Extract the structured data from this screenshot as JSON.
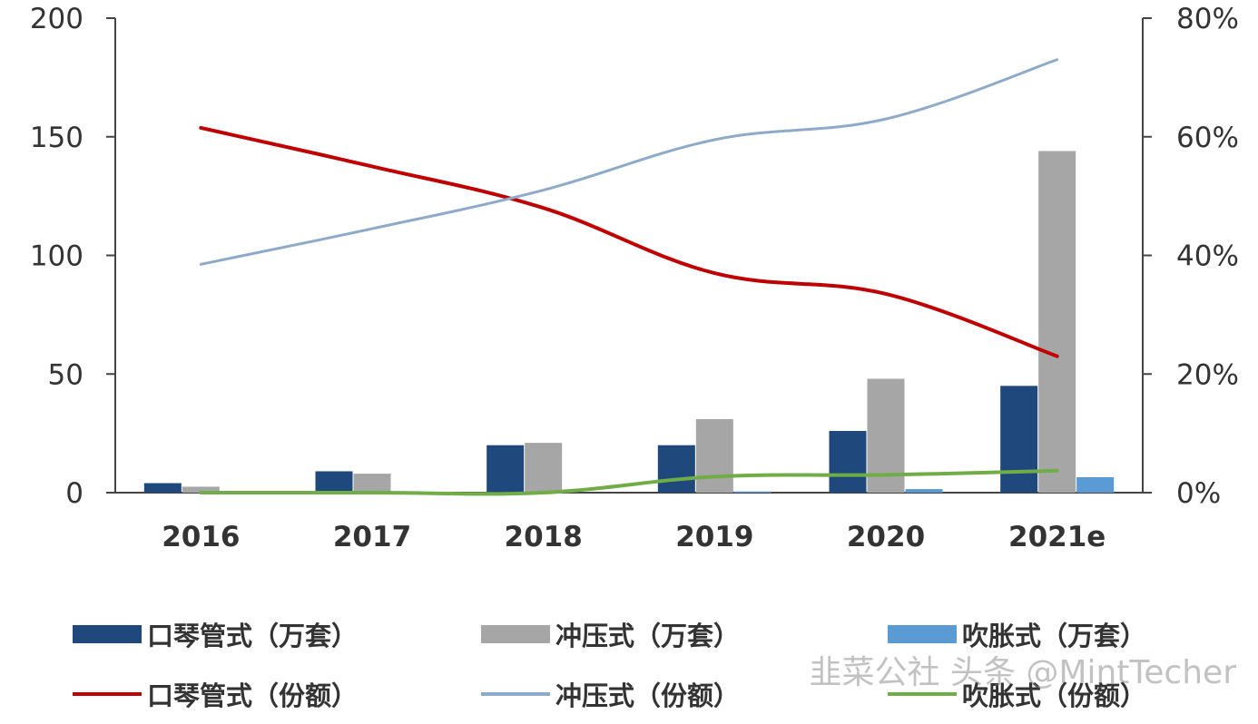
{
  "chart_data": {
    "type": "bar",
    "categories": [
      "2016",
      "2017",
      "2018",
      "2019",
      "2020",
      "2021e"
    ],
    "left_axis": {
      "ylim": [
        0,
        200
      ],
      "ticks": [
        "0",
        "50",
        "100",
        "150",
        "200"
      ]
    },
    "right_axis": {
      "ylim": [
        0,
        0.8
      ],
      "ticks": [
        "0%",
        "20%",
        "40%",
        "60%",
        "80%"
      ]
    },
    "grid": false,
    "legend_position": "bottom",
    "bar_series": [
      {
        "name": "口琴管式（万套）",
        "values": [
          4,
          9,
          20,
          20,
          26,
          45
        ],
        "color": "#1f497d"
      },
      {
        "name": "冲压式（万套）",
        "values": [
          2.5,
          8,
          21,
          31,
          48,
          144
        ],
        "color": "#a6a6a6"
      },
      {
        "name": "吹胀式（万套）",
        "values": [
          0,
          0,
          0,
          0.5,
          1.5,
          6.5
        ],
        "color": "#5b9bd5"
      }
    ],
    "line_series": [
      {
        "name": "口琴管式（份额）",
        "values": [
          0.615,
          0.55,
          0.48,
          0.37,
          0.335,
          0.23
        ],
        "color": "#c00000"
      },
      {
        "name": "冲压式（份额）",
        "values": [
          0.385,
          0.445,
          0.51,
          0.595,
          0.63,
          0.73
        ],
        "color": "#8eaacb"
      },
      {
        "name": "吹胀式（份额）",
        "values": [
          0.0,
          0.0,
          0.0,
          0.027,
          0.03,
          0.037
        ],
        "color": "#70ad47"
      }
    ]
  },
  "watermark": "韭菜公社 头条 @MintTecher"
}
